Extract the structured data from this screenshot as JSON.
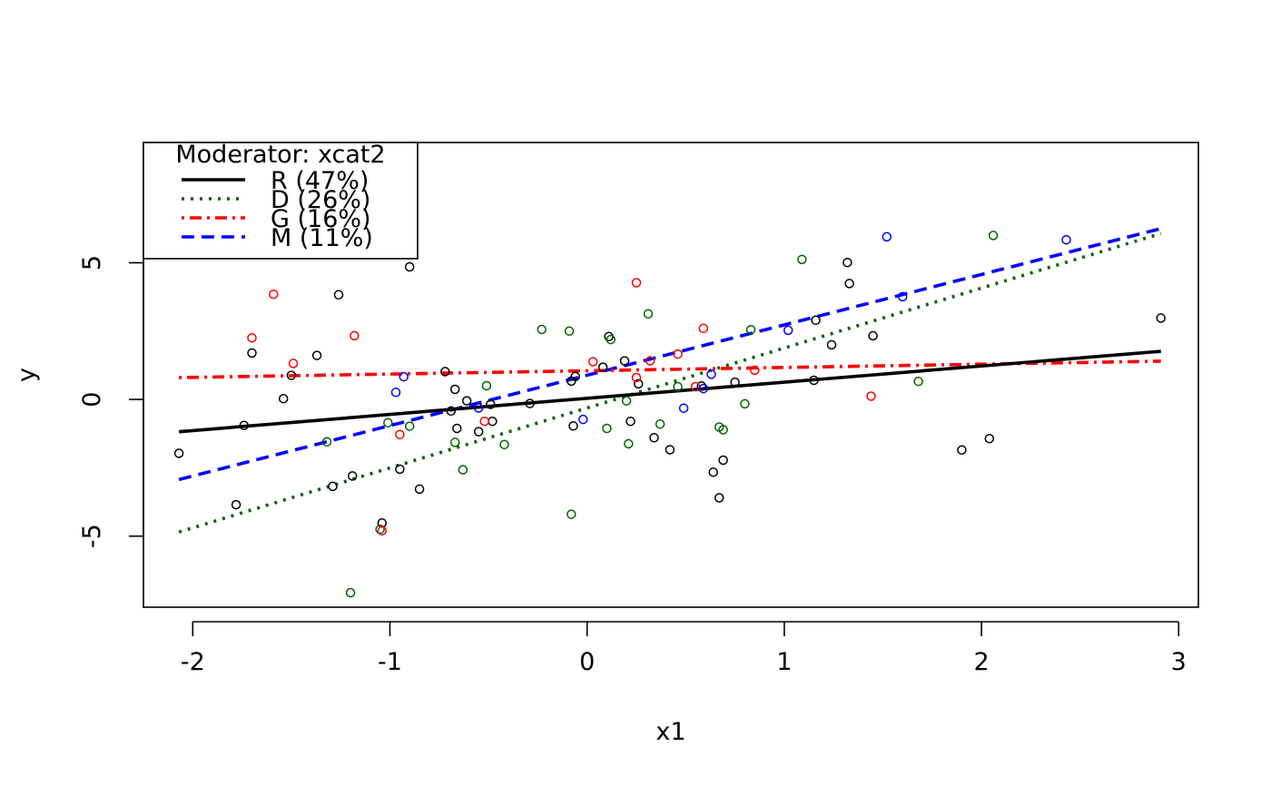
{
  "chart_data": {
    "type": "scatter",
    "xlabel": "x1",
    "ylabel": "y",
    "xlim": [
      -2.25,
      3.1
    ],
    "ylim": [
      -7.6,
      9.4
    ],
    "x_ticks": [
      -2,
      -1,
      0,
      1,
      2,
      3
    ],
    "y_ticks": [
      -5,
      0,
      5
    ],
    "x_tick_labels": [
      "-2",
      "-1",
      "0",
      "1",
      "2",
      "3"
    ],
    "y_tick_labels": [
      "-5",
      "0",
      "5"
    ],
    "legend": {
      "title": "Moderator: xcat2",
      "placement": "top-left",
      "entries": [
        "R (47%)",
        "D (26%)",
        "G (16%)",
        "M (11%)"
      ]
    },
    "series": [
      {
        "name": "R (47%)",
        "color": "#000000",
        "line_style": "solid",
        "line": [
          [
            -2.07,
            -1.18
          ],
          [
            2.91,
            1.76
          ]
        ],
        "points": [
          [
            -2.07,
            -1.97
          ],
          [
            -1.78,
            -3.85
          ],
          [
            -1.74,
            -0.95
          ],
          [
            -1.7,
            1.7
          ],
          [
            -1.54,
            0.03
          ],
          [
            -1.5,
            0.88
          ],
          [
            -1.37,
            1.61
          ],
          [
            -1.29,
            -3.18
          ],
          [
            -1.26,
            3.83
          ],
          [
            -1.19,
            -2.8
          ],
          [
            -1.04,
            -4.52
          ],
          [
            -0.95,
            -2.55
          ],
          [
            -0.9,
            4.85
          ],
          [
            -0.85,
            -3.28
          ],
          [
            -0.72,
            1.02
          ],
          [
            -0.69,
            -0.42
          ],
          [
            -0.67,
            0.37
          ],
          [
            -0.66,
            -1.06
          ],
          [
            -0.61,
            -0.05
          ],
          [
            -0.55,
            -1.18
          ],
          [
            -0.49,
            -0.18
          ],
          [
            -0.48,
            -0.8
          ],
          [
            -0.29,
            -0.15
          ],
          [
            -0.08,
            0.67
          ],
          [
            -0.07,
            -0.97
          ],
          [
            -0.06,
            0.84
          ],
          [
            0.08,
            1.18
          ],
          [
            0.11,
            2.3
          ],
          [
            0.19,
            1.41
          ],
          [
            0.22,
            -0.8
          ],
          [
            0.26,
            0.57
          ],
          [
            0.34,
            -1.4
          ],
          [
            0.42,
            -1.84
          ],
          [
            0.58,
            0.49
          ],
          [
            0.64,
            -2.66
          ],
          [
            0.67,
            -3.6
          ],
          [
            0.69,
            -2.22
          ],
          [
            0.75,
            0.63
          ],
          [
            1.15,
            0.7
          ],
          [
            1.16,
            2.9
          ],
          [
            1.24,
            2.0
          ],
          [
            1.32,
            5.01
          ],
          [
            1.33,
            4.24
          ],
          [
            1.45,
            2.33
          ],
          [
            1.9,
            -1.85
          ],
          [
            2.04,
            -1.43
          ],
          [
            2.91,
            2.98
          ]
        ]
      },
      {
        "name": "D (26%)",
        "color": "#006400",
        "line_style": "dotted",
        "line": [
          [
            -2.07,
            -4.85
          ],
          [
            2.91,
            6.07
          ]
        ],
        "points": [
          [
            -1.32,
            -1.55
          ],
          [
            -1.2,
            -7.07
          ],
          [
            -1.05,
            -4.75
          ],
          [
            -1.01,
            -0.85
          ],
          [
            -0.9,
            -0.98
          ],
          [
            -0.67,
            -1.57
          ],
          [
            -0.63,
            -2.57
          ],
          [
            -0.51,
            0.5
          ],
          [
            -0.42,
            -1.65
          ],
          [
            -0.23,
            2.56
          ],
          [
            -0.09,
            2.5
          ],
          [
            -0.08,
            -4.2
          ],
          [
            0.1,
            -1.06
          ],
          [
            0.12,
            2.19
          ],
          [
            0.2,
            -0.05
          ],
          [
            0.21,
            -1.62
          ],
          [
            0.31,
            3.13
          ],
          [
            0.37,
            -0.9
          ],
          [
            0.46,
            0.47
          ],
          [
            0.67,
            -1.01
          ],
          [
            0.69,
            -1.11
          ],
          [
            0.8,
            -0.16
          ],
          [
            0.83,
            2.55
          ],
          [
            1.09,
            5.12
          ],
          [
            1.68,
            0.66
          ],
          [
            2.06,
            6.0
          ]
        ]
      },
      {
        "name": "G (16%)",
        "color": "#ff0000",
        "line_style": "dotdash",
        "line": [
          [
            -2.07,
            0.8
          ],
          [
            2.91,
            1.4
          ]
        ],
        "points": [
          [
            -1.59,
            3.85
          ],
          [
            -1.7,
            2.25
          ],
          [
            -1.49,
            1.32
          ],
          [
            -1.18,
            2.33
          ],
          [
            -1.04,
            -4.8
          ],
          [
            -0.95,
            -1.28
          ],
          [
            -0.52,
            -0.8
          ],
          [
            0.03,
            1.38
          ],
          [
            0.25,
            4.27
          ],
          [
            0.25,
            0.8
          ],
          [
            0.32,
            1.41
          ],
          [
            0.46,
            1.66
          ],
          [
            0.55,
            0.47
          ],
          [
            0.59,
            2.6
          ],
          [
            0.85,
            1.07
          ],
          [
            1.44,
            0.12
          ]
        ]
      },
      {
        "name": "M (11%)",
        "color": "#0000ff",
        "line_style": "dashed",
        "line": [
          [
            -2.07,
            -2.93
          ],
          [
            2.91,
            6.25
          ]
        ],
        "points": [
          [
            -0.97,
            0.26
          ],
          [
            -0.93,
            0.83
          ],
          [
            -0.55,
            -0.31
          ],
          [
            -0.02,
            -0.73
          ],
          [
            0.49,
            -0.32
          ],
          [
            0.59,
            0.4
          ],
          [
            0.63,
            0.92
          ],
          [
            1.02,
            2.53
          ],
          [
            1.52,
            5.95
          ],
          [
            1.6,
            3.76
          ],
          [
            2.43,
            5.84
          ]
        ]
      }
    ]
  }
}
